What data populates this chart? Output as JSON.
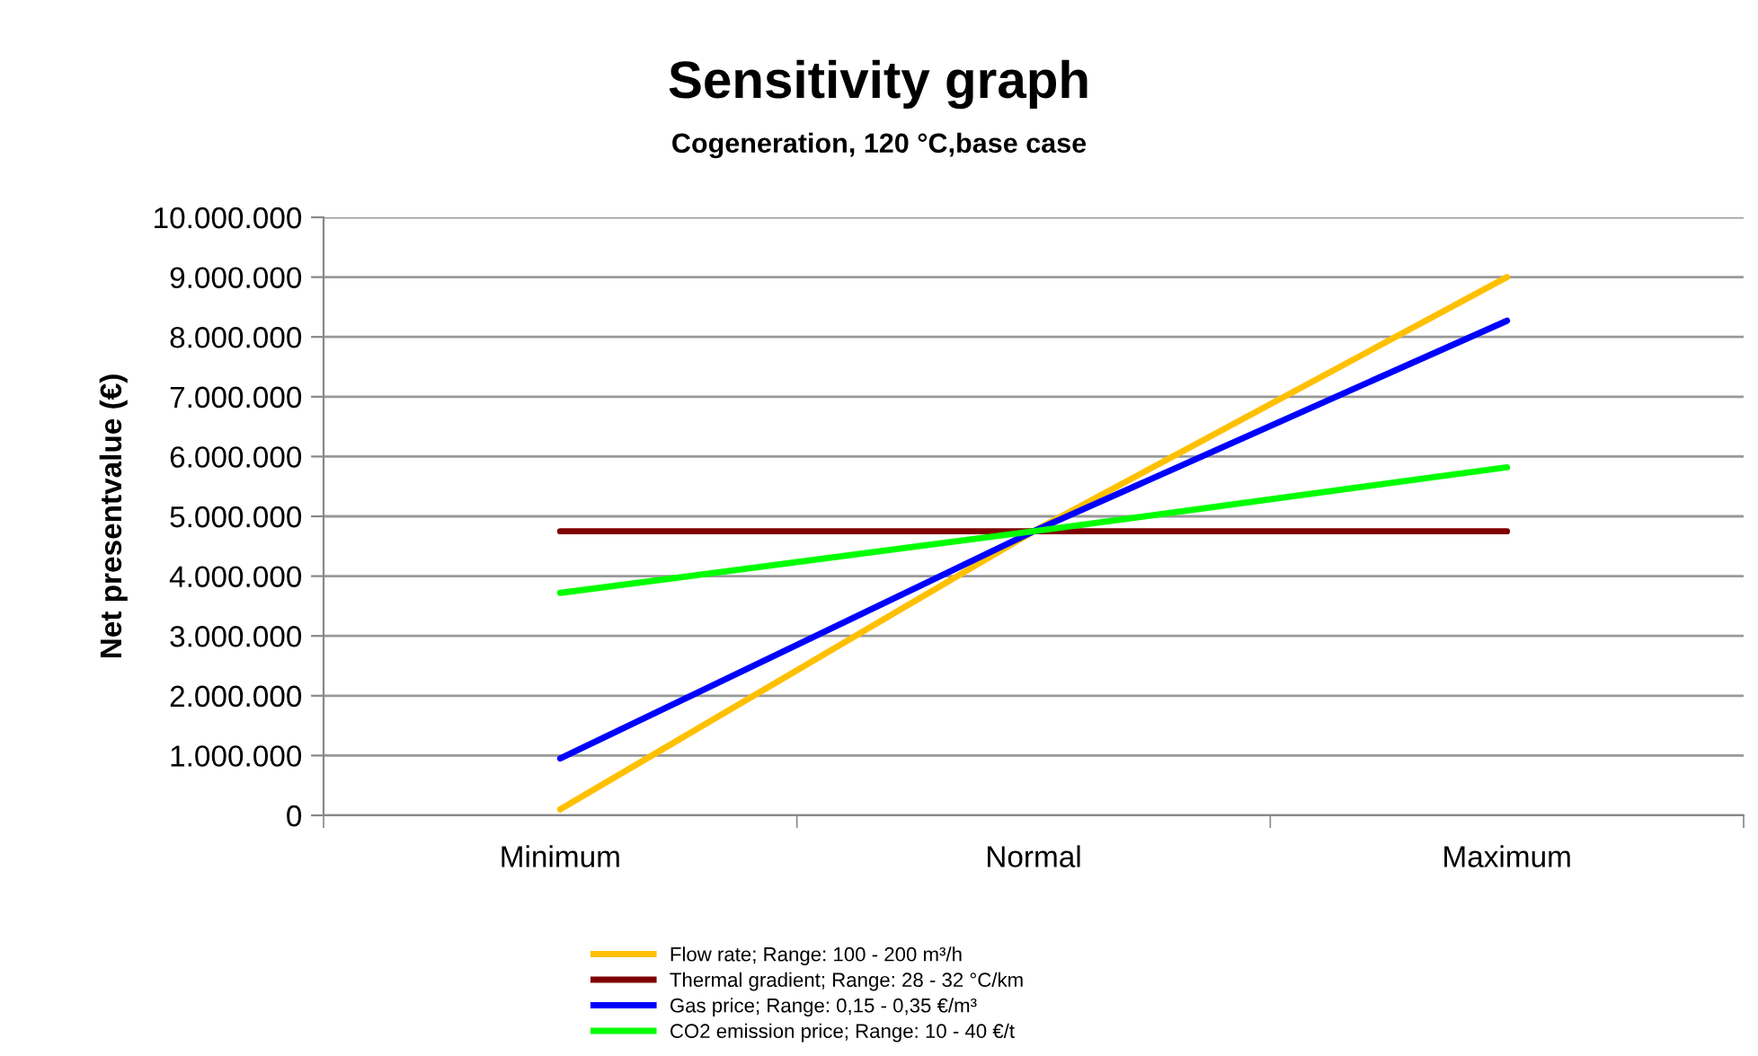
{
  "chart_data": {
    "type": "line",
    "title": "Sensitivity graph",
    "subtitle": "Cogeneration, 120 °C,base case",
    "ylabel": "Net presentvalue (€)",
    "categories": [
      "Minimum",
      "Normal",
      "Maximum"
    ],
    "series": [
      {
        "name": "Flow rate; Range: 100 - 200 m³/h",
        "color": "#ffc000",
        "values": [
          100000,
          4750000,
          9000000
        ]
      },
      {
        "name": "Thermal gradient; Range: 28 - 32 °C/km",
        "color": "#800000",
        "values": [
          4750000,
          4750000,
          4750000
        ]
      },
      {
        "name": "Gas price; Range: 0,15 - 0,35 €/m³",
        "color": "#0000ff",
        "values": [
          950000,
          4750000,
          8270000
        ]
      },
      {
        "name": "CO2 emission price; Range: 10 - 40 €/t",
        "color": "#00ff00",
        "values": [
          3720000,
          4750000,
          5820000
        ]
      }
    ],
    "ylim": [
      0,
      10000000
    ],
    "yticks": [
      {
        "value": 0,
        "label": "0"
      },
      {
        "value": 1000000,
        "label": "1.000.000"
      },
      {
        "value": 2000000,
        "label": "2.000.000"
      },
      {
        "value": 3000000,
        "label": "3.000.000"
      },
      {
        "value": 4000000,
        "label": "4.000.000"
      },
      {
        "value": 5000000,
        "label": "5.000.000"
      },
      {
        "value": 6000000,
        "label": "6.000.000"
      },
      {
        "value": 7000000,
        "label": "7.000.000"
      },
      {
        "value": 8000000,
        "label": "8.000.000"
      },
      {
        "value": 9000000,
        "label": "9.000.000"
      },
      {
        "value": 10000000,
        "label": "10.000.000"
      }
    ],
    "grid": "y",
    "legend": "bottom",
    "marker": "none",
    "line_style": "solid"
  }
}
